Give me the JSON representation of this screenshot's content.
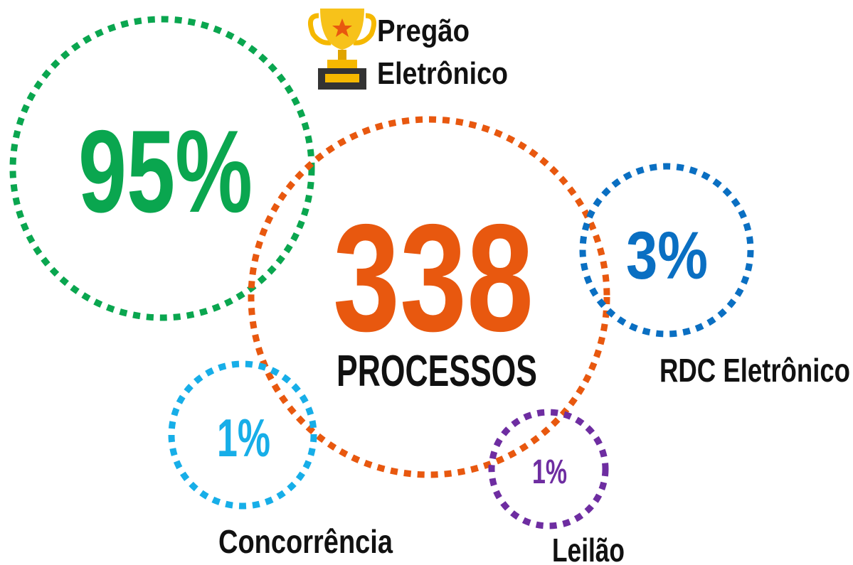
{
  "center": {
    "value": "338",
    "label": "PROCESSOS"
  },
  "items": [
    {
      "value": "95%",
      "label": [
        "Pregão",
        "Eletrônico"
      ]
    },
    {
      "value": "3%",
      "label": [
        "RDC Eletrônico"
      ]
    },
    {
      "value": "1%",
      "label": [
        "Concorrência"
      ]
    },
    {
      "value": "1%",
      "label": [
        "Leilão"
      ]
    }
  ]
}
